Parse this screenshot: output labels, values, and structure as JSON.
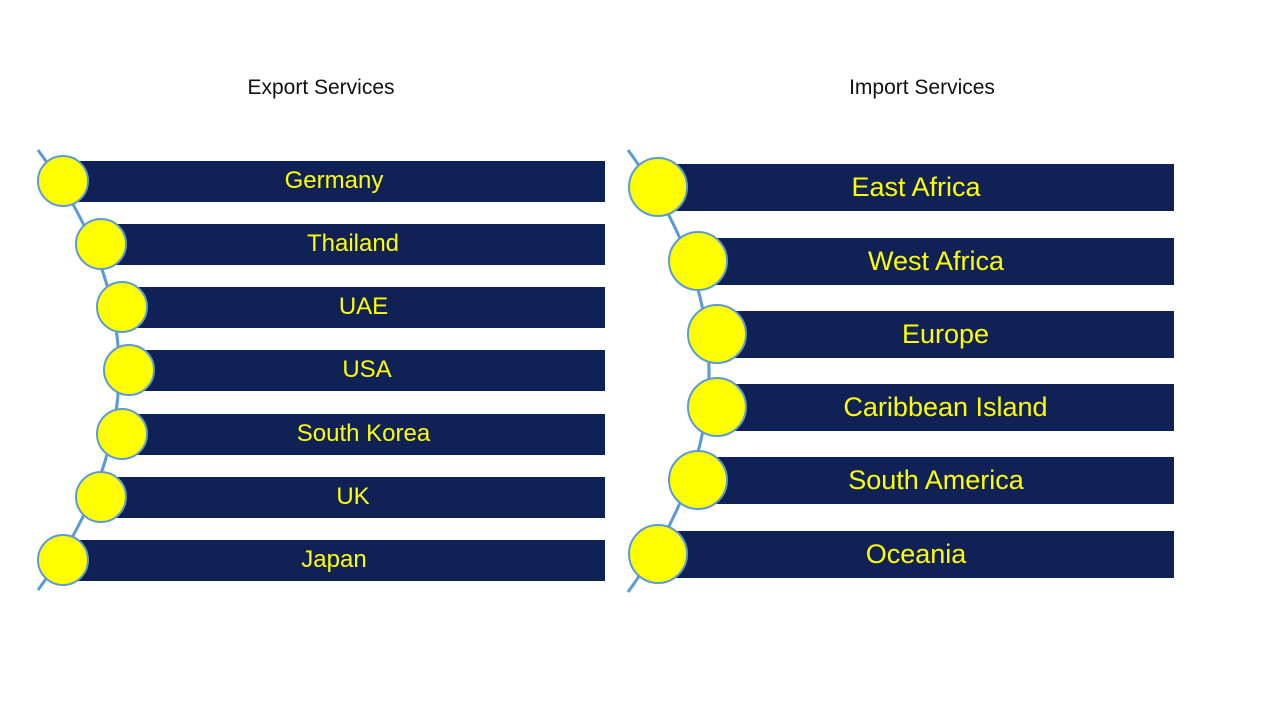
{
  "colors": {
    "bar": "#0f2155",
    "text": "#ffff00",
    "circle_fill": "#ffff00",
    "circle_border": "#5b9bd5",
    "arc": "#5b9bd5"
  },
  "export": {
    "title": "Export Services",
    "items": [
      "Germany",
      "Thailand",
      "UAE",
      "USA",
      "South Korea",
      "UK",
      "Japan"
    ]
  },
  "import": {
    "title": "Import Services",
    "items": [
      "East Africa",
      "West Africa",
      "Europe",
      "Caribbean Island",
      "South America",
      "Oceania"
    ]
  }
}
